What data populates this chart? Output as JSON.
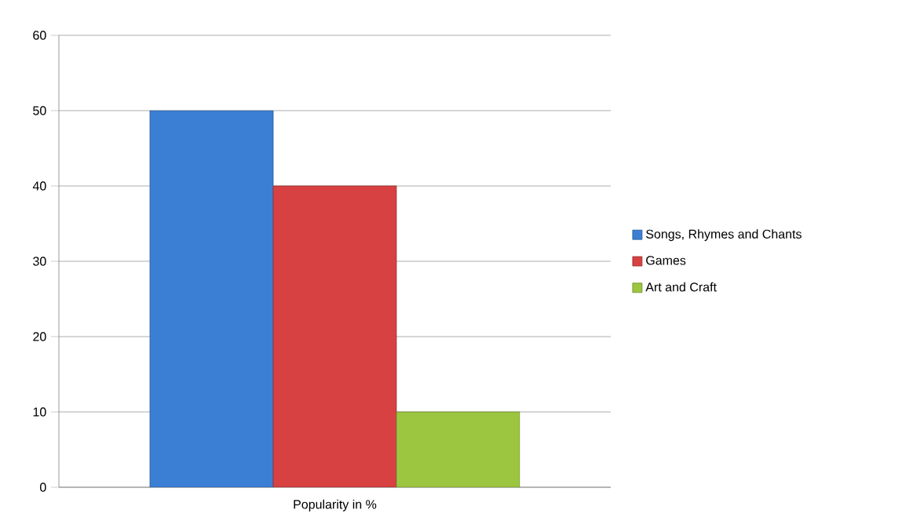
{
  "chart_data": {
    "type": "bar",
    "categories": [
      "Popularity in %"
    ],
    "series": [
      {
        "name": "Songs, Rhymes and Chants",
        "color": "#3b7fd4",
        "values": [
          50
        ]
      },
      {
        "name": "Games",
        "color": "#d84141",
        "values": [
          40
        ]
      },
      {
        "name": "Art and Craft",
        "color": "#9cc63f",
        "values": [
          10
        ]
      }
    ],
    "ylim": [
      0,
      60
    ],
    "yticks": [
      0,
      10,
      20,
      30,
      40,
      50,
      60
    ],
    "grid": "y",
    "legend": "right"
  }
}
